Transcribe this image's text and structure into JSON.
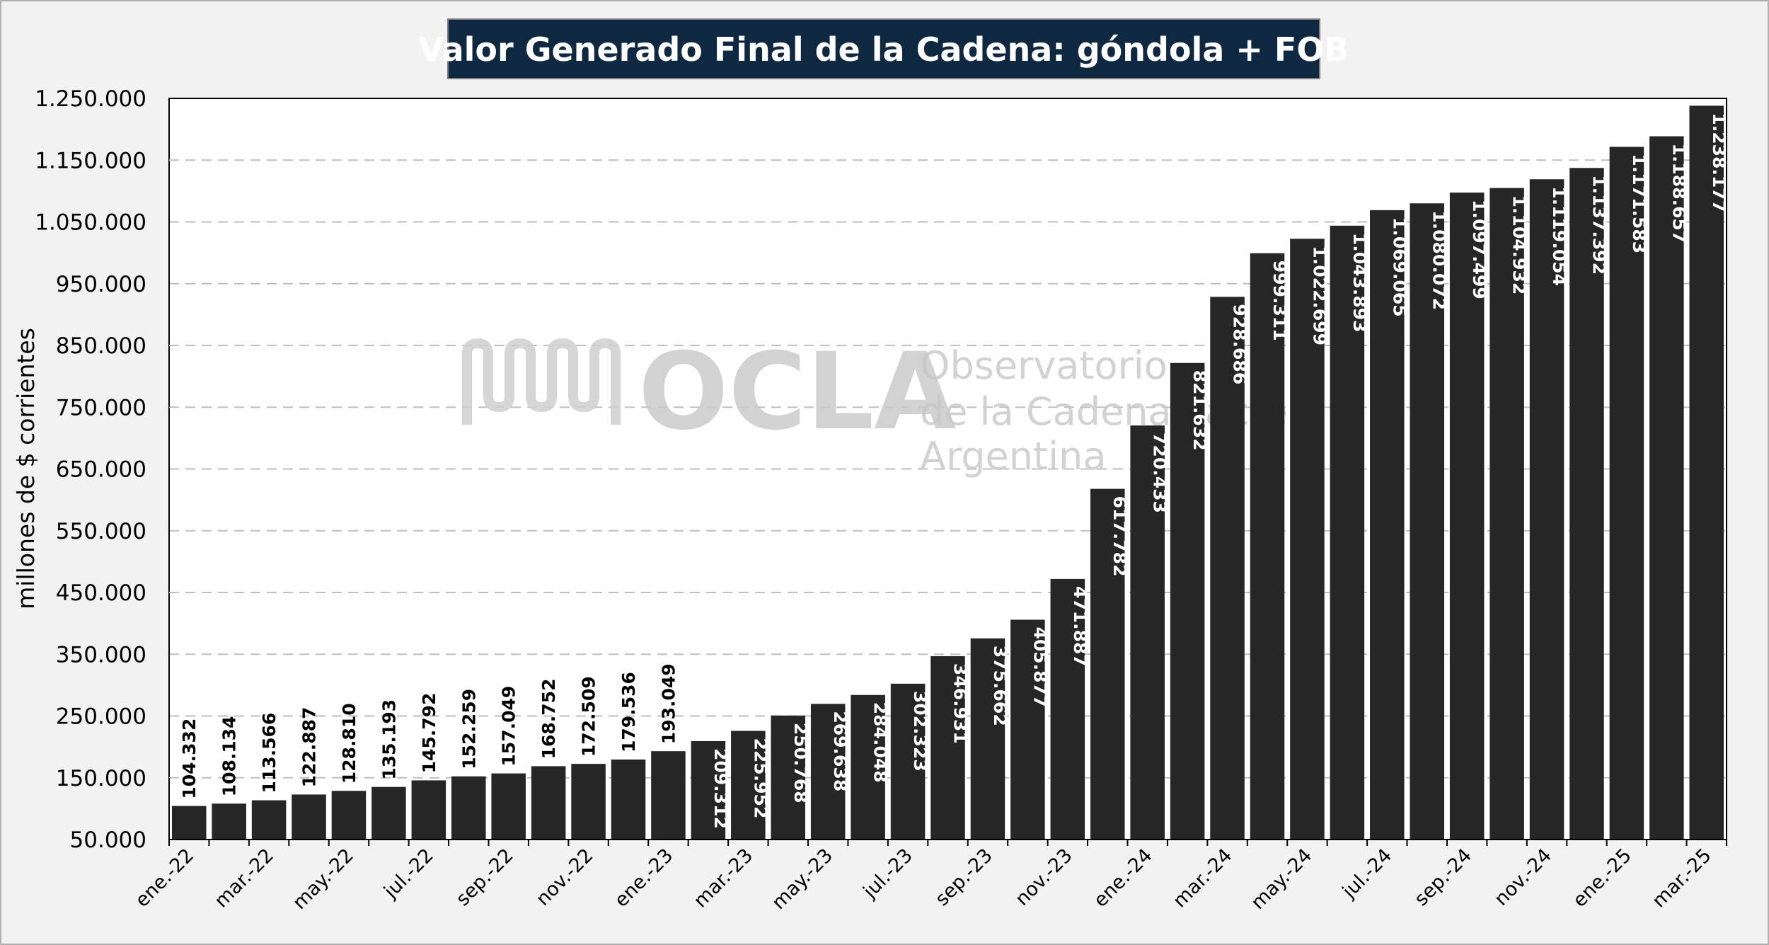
{
  "chart_data": {
    "type": "bar",
    "title": "Valor Generado Final de la Cadena: góndola + FOB",
    "ylabel": "millones de $ corrientes",
    "xlabel": "",
    "ylim": [
      50000,
      1250000
    ],
    "yticks": [
      "1.250.000",
      "1.150.000",
      "1.050.000",
      "950.000",
      "850.000",
      "750.000",
      "650.000",
      "550.000",
      "450.000",
      "350.000",
      "250.000",
      "150.000",
      "50.000"
    ],
    "ytick_values": [
      1250000,
      1150000,
      1050000,
      950000,
      850000,
      750000,
      650000,
      550000,
      450000,
      350000,
      250000,
      150000,
      50000
    ],
    "grid": true,
    "bar_color": "#262626",
    "categories": [
      "ene.-22",
      "feb.-22",
      "mar.-22",
      "abr.-22",
      "may.-22",
      "jun.-22",
      "jul.-22",
      "ago.-22",
      "sep.-22",
      "oct.-22",
      "nov.-22",
      "dic.-22",
      "ene.-23",
      "feb.-23",
      "mar.-23",
      "abr.-23",
      "may.-23",
      "jun.-23",
      "jul.-23",
      "ago.-23",
      "sep.-23",
      "oct.-23",
      "nov.-23",
      "dic.-23",
      "ene.-24",
      "feb.-24",
      "mar.-24",
      "abr.-24",
      "may.-24",
      "jun.-24",
      "jul.-24",
      "ago.-24",
      "sep.-24",
      "oct.-24",
      "nov.-24",
      "dic.-24",
      "ene.-25",
      "feb.-25",
      "mar.-25"
    ],
    "visible_tick_labels": [
      "ene.-22",
      "mar.-22",
      "may.-22",
      "jul.-22",
      "sep.-22",
      "nov.-22",
      "ene.-23",
      "mar.-23",
      "may.-23",
      "jul.-23",
      "sep.-23",
      "nov.-23",
      "ene.-24",
      "mar.-24",
      "may.-24",
      "jul.-24",
      "sep.-24",
      "nov.-24",
      "ene.-25",
      "mar.-25"
    ],
    "values": [
      104332,
      108134,
      113566,
      122887,
      128810,
      135193,
      145792,
      152259,
      157049,
      168752,
      172509,
      179536,
      193049,
      209312,
      225952,
      250768,
      269638,
      284048,
      302323,
      346931,
      375662,
      405877,
      471887,
      617782,
      720433,
      821632,
      928686,
      999311,
      1022699,
      1043893,
      1069065,
      1080072,
      1097499,
      1104932,
      1119054,
      1137392,
      1171583,
      1188657,
      1238177
    ],
    "data_labels": [
      "104.332",
      "108.134",
      "113.566",
      "122.887",
      "128.810",
      "135.193",
      "145.792",
      "152.259",
      "157.049",
      "168.752",
      "172.509",
      "179.536",
      "193.049",
      "209.312",
      "225.952",
      "250.768",
      "269.638",
      "284.048",
      "302.323",
      "346.931",
      "375.662",
      "405.877",
      "471.887",
      "617.782",
      "720.433",
      "821.632",
      "928.686",
      "999.311",
      "1.022.699",
      "1.043.893",
      "1.069.065",
      "1.080.072",
      "1.097.499",
      "1.104.932",
      "1.119.054",
      "1.137.392",
      "1.171.583",
      "1.188.657",
      "1.238.177"
    ]
  },
  "watermark": {
    "logo": "OCLA",
    "line1": "Observatorio",
    "line2": "de la Cadena Láctea",
    "line3": "Argentina"
  }
}
